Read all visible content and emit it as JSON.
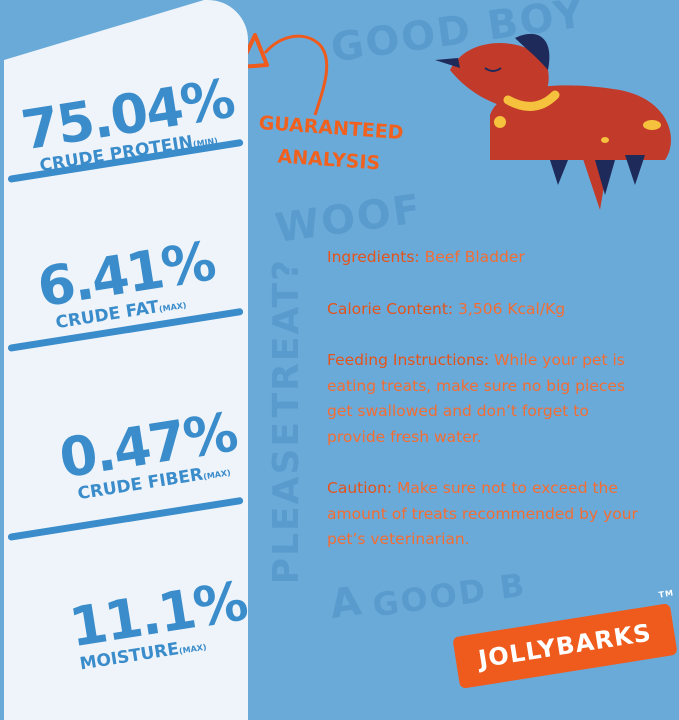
{
  "background_words": [
    "GOOD BOY",
    "WOOF",
    "TREAT?",
    "PLEASE",
    "A",
    "GOOD B"
  ],
  "stats": [
    {
      "value": "75.04%",
      "label": "CRUDE PROTEIN",
      "qualifier": "(MIN)"
    },
    {
      "value": "6.41%",
      "label": "CRUDE FAT",
      "qualifier": "(MAX)"
    },
    {
      "value": "0.47%",
      "label": "CRUDE FIBER",
      "qualifier": "(MAX)"
    },
    {
      "value": "11.1%",
      "label": "MOISTURE",
      "qualifier": "(MAX)"
    }
  ],
  "heading": {
    "line1": "GUARANTEED",
    "line2": "ANALYSIS"
  },
  "info": [
    {
      "label": "Ingredients:",
      "text": " Beef Bladder"
    },
    {
      "label": "Calorie Content:",
      "text": " 3,506 Kcal/Kg"
    },
    {
      "label": "Feeding Instructions:",
      "text": " While your pet is eating treats, make sure no big pieces get swallowed and don’t forget to provide fresh water."
    },
    {
      "label": "Caution:",
      "text": " Make sure not to exceed the amount of treats recommended by your pet’s veterinarian."
    }
  ],
  "logo": {
    "text": "JOLLYBARKS",
    "tm": "TM"
  },
  "colors": {
    "background": "#6aaad9",
    "panel": "#eef4fa",
    "stat_blue": "#3a8ccb",
    "accent_orange": "#ef5a1d",
    "dog_red": "#c23a2a"
  }
}
